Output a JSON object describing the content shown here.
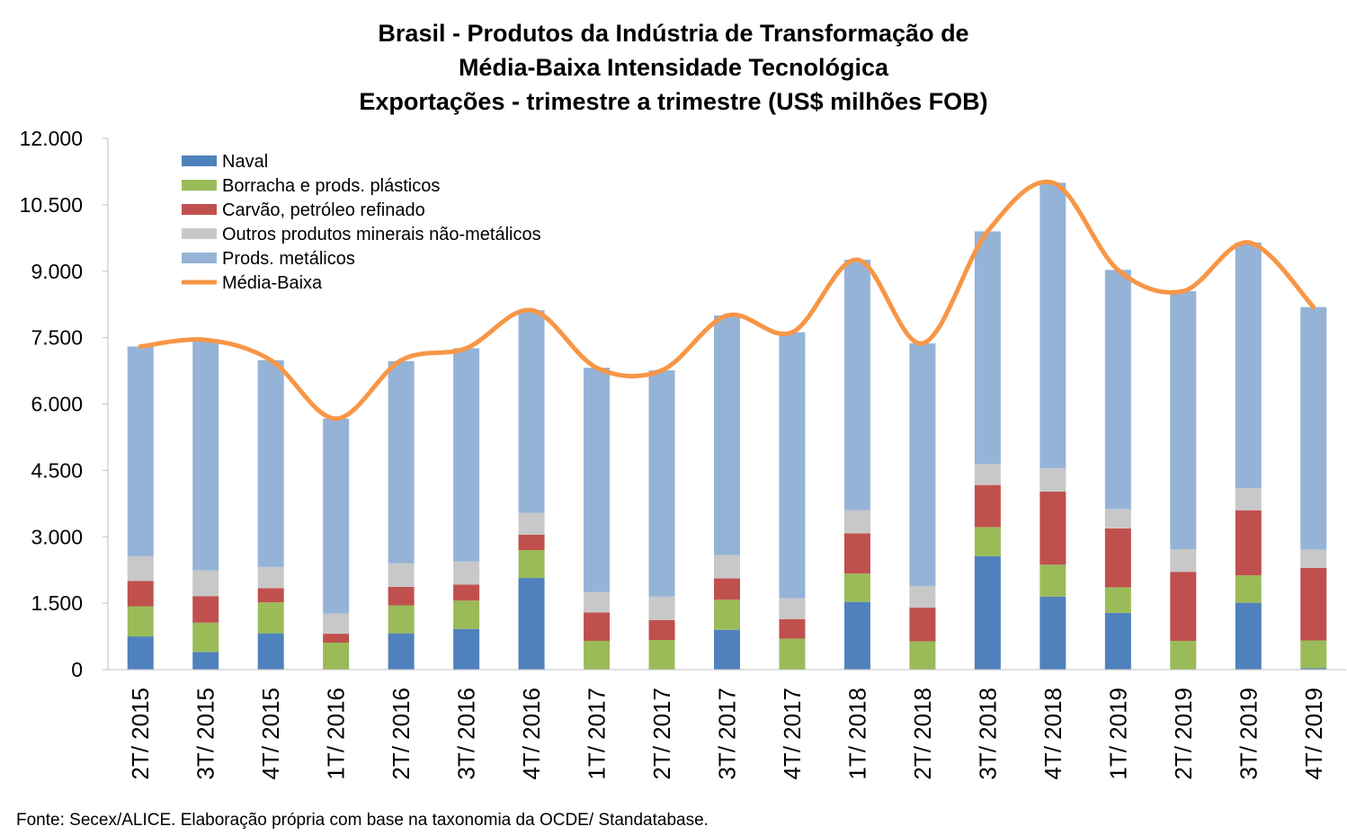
{
  "chart_data": {
    "type": "bar",
    "stacked": true,
    "title_lines": [
      "Brasil - Produtos da Indústria de Transformação de",
      "Média-Baixa Intensidade Tecnológica",
      "Exportações - trimestre a trimestre (US$ milhões FOB)"
    ],
    "categories": [
      "2T/ 2015",
      "3T/ 2015",
      "4T/ 2015",
      "1T/ 2016",
      "2T/ 2016",
      "3T/ 2016",
      "4T/ 2016",
      "1T/ 2017",
      "2T/ 2017",
      "3T/ 2017",
      "4T/ 2017",
      "1T/ 2018",
      "2T/ 2018",
      "3T/ 2018",
      "4T/ 2018",
      "1T/ 2019",
      "2T/ 2019",
      "3T/ 2019",
      "4T/ 2019"
    ],
    "ylim": [
      0,
      12000
    ],
    "yticks": [
      0,
      1500,
      3000,
      4500,
      6000,
      7500,
      9000,
      10500,
      12000
    ],
    "ytick_labels": [
      "0",
      "1.500",
      "3.000",
      "4.500",
      "6.000",
      "7.500",
      "9.000",
      "10.500",
      "12.000"
    ],
    "legend_position": "top-left",
    "series": [
      {
        "name": "Naval",
        "color": "#4f81bd",
        "values": [
          750,
          400,
          820,
          0,
          820,
          920,
          2070,
          0,
          0,
          900,
          0,
          1530,
          0,
          2560,
          1650,
          1280,
          0,
          1510,
          30
        ]
      },
      {
        "name": "Borracha e prods. plásticos",
        "color": "#9bbb59",
        "values": [
          680,
          660,
          700,
          610,
          630,
          640,
          630,
          650,
          670,
          680,
          700,
          640,
          640,
          660,
          720,
          580,
          650,
          620,
          630
        ]
      },
      {
        "name": "Carvão, petróleo refinado",
        "color": "#c0504d",
        "values": [
          570,
          600,
          320,
          200,
          420,
          360,
          350,
          640,
          450,
          480,
          440,
          910,
          760,
          950,
          1650,
          1330,
          1560,
          1470,
          1640
        ]
      },
      {
        "name": "Outros produtos minerais não-metálicos",
        "color": "#c8c8c8",
        "values": [
          560,
          580,
          480,
          460,
          530,
          520,
          490,
          460,
          530,
          530,
          470,
          520,
          490,
          480,
          530,
          440,
          510,
          500,
          410
        ]
      },
      {
        "name": "Prods. metálicos",
        "color": "#95b3d7",
        "values": [
          4740,
          5210,
          4670,
          4400,
          4570,
          4820,
          4580,
          5070,
          5110,
          5410,
          6010,
          5660,
          5480,
          5250,
          6450,
          5400,
          5830,
          5550,
          5480
        ]
      }
    ],
    "line_series": {
      "name": "Média-Baixa",
      "color": "#f79646",
      "values": [
        7300,
        7450,
        6990,
        5670,
        6990,
        7260,
        8120,
        6820,
        6760,
        8000,
        7620,
        9260,
        7370,
        9900,
        11000,
        9030,
        8550,
        9650,
        8190
      ]
    },
    "source": "Fonte: Secex/ALICE. Elaboração própria com base na taxonomia da OCDE/ Standatabase."
  }
}
